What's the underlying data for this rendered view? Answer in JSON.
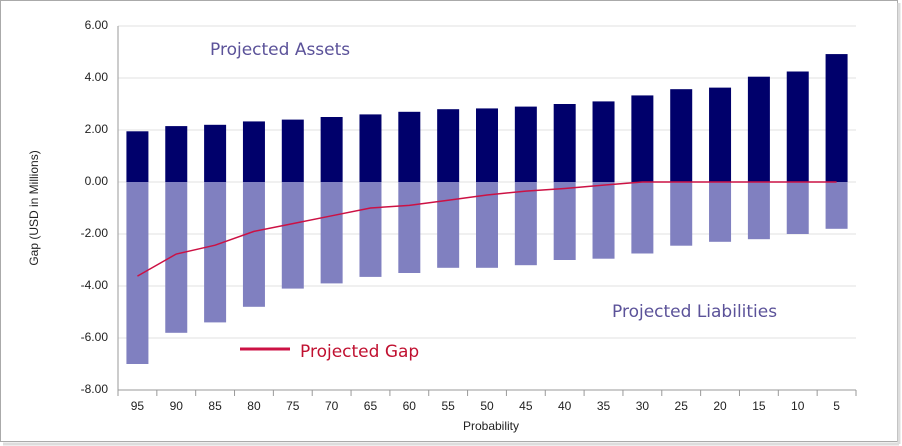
{
  "chart_data": {
    "type": "bar",
    "x_label": "Probability",
    "y_label": "Gap (USD in Millions)",
    "categories": [
      "95",
      "90",
      "85",
      "80",
      "75",
      "70",
      "65",
      "60",
      "55",
      "50",
      "45",
      "40",
      "35",
      "30",
      "25",
      "20",
      "15",
      "10",
      "5"
    ],
    "series": [
      {
        "name": "Projected Assets",
        "type": "bar",
        "color": "#00006b",
        "values": [
          1.95,
          2.15,
          2.2,
          2.33,
          2.4,
          2.5,
          2.6,
          2.7,
          2.8,
          2.83,
          2.9,
          3.0,
          3.1,
          3.33,
          3.57,
          3.63,
          4.05,
          4.25,
          4.92
        ]
      },
      {
        "name": "Projected Liabilities",
        "type": "bar",
        "color": "#8080c0",
        "values": [
          -7.0,
          -5.8,
          -5.4,
          -4.8,
          -4.1,
          -3.9,
          -3.65,
          -3.5,
          -3.3,
          -3.3,
          -3.2,
          -3.0,
          -2.95,
          -2.75,
          -2.45,
          -2.3,
          -2.2,
          -2.0,
          -1.8
        ]
      },
      {
        "name": "Projected Gap",
        "type": "line",
        "color": "#cc1144",
        "values": [
          -3.62,
          -2.77,
          -2.43,
          -1.9,
          -1.6,
          -1.3,
          -1.0,
          -0.9,
          -0.7,
          -0.5,
          -0.35,
          -0.25,
          -0.12,
          0,
          0,
          0,
          0,
          0,
          0
        ]
      }
    ],
    "ylim": [
      -8,
      6
    ],
    "yticks": [
      {
        "value": -8,
        "label": "-8.00"
      },
      {
        "value": -6,
        "label": "-6.00"
      },
      {
        "value": -4,
        "label": "-4.00"
      },
      {
        "value": -2,
        "label": "-2.00"
      },
      {
        "value": 0,
        "label": "0.00"
      },
      {
        "value": 2,
        "label": "2.00"
      },
      {
        "value": 4,
        "label": "4.00"
      },
      {
        "value": 6,
        "label": "6.00"
      }
    ],
    "grid": true
  }
}
